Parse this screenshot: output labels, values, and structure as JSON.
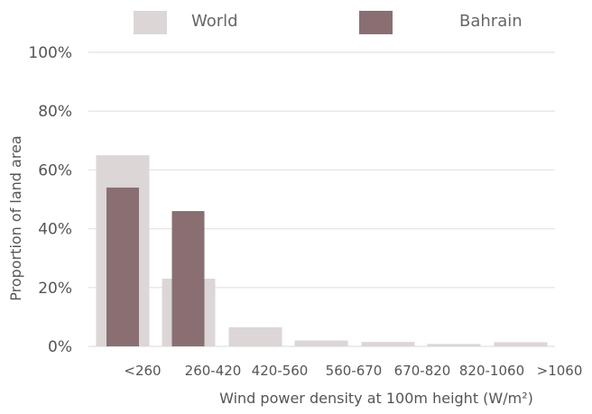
{
  "chart_data": {
    "type": "bar",
    "categories": [
      "<260",
      "260-420",
      "420-560",
      "560-670",
      "670-820",
      "820-1060",
      ">1060"
    ],
    "series": [
      {
        "name": "World",
        "values": [
          65,
          23,
          6.5,
          2,
          1.5,
          0.8,
          1.4
        ],
        "color": "#dcd6d6"
      },
      {
        "name": "Bahrain",
        "values": [
          54,
          46,
          0,
          0,
          0,
          0,
          0
        ],
        "color": "#896f72"
      }
    ],
    "ylabel": "Proportion of land area",
    "xlabel": "Wind power density at 100m height (W/m²)",
    "ylim": [
      0,
      100
    ],
    "yticks": [
      "0%",
      "20%",
      "40%",
      "60%",
      "80%",
      "100%"
    ],
    "grid": true,
    "legend": "top"
  }
}
